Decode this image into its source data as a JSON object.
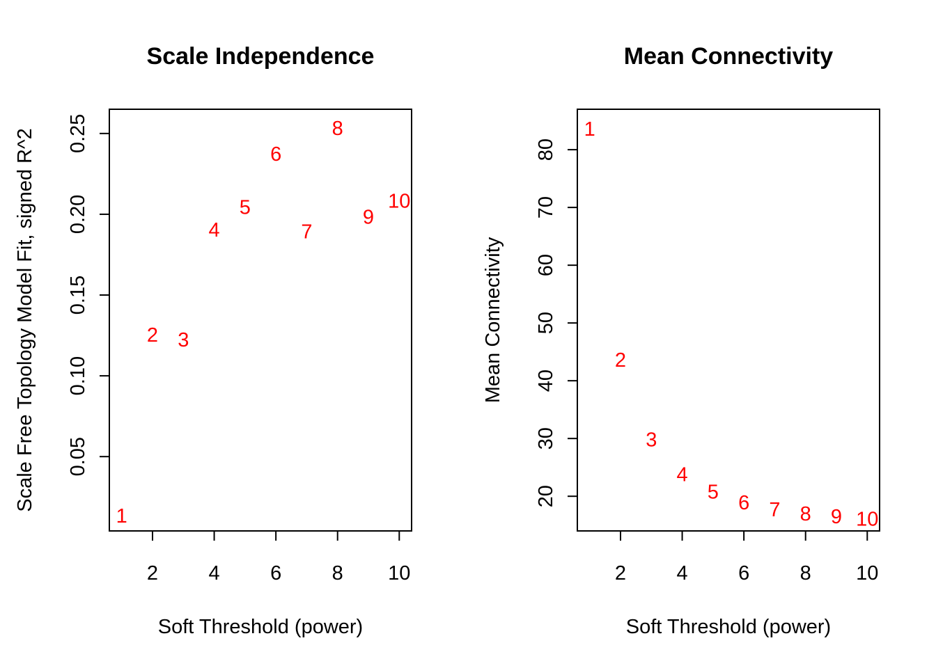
{
  "chart_data": [
    {
      "type": "scatter",
      "title": "Scale Independence",
      "xlabel": "Soft Threshold (power)",
      "ylabel": "Scale Free Topology Model Fit, signed R^2",
      "xlim": [
        0.6,
        10.4
      ],
      "ylim": [
        0.004,
        0.265
      ],
      "xticks": [
        2,
        4,
        6,
        8,
        10
      ],
      "yticks": [
        0.05,
        0.1,
        0.15,
        0.2,
        0.25
      ],
      "ytick_labels": [
        "0.05",
        "0.10",
        "0.15",
        "0.20",
        "0.25"
      ],
      "grid": false,
      "marker_color": "#ff0000",
      "points": [
        {
          "x": 1,
          "y": 0.013,
          "label": "1"
        },
        {
          "x": 2,
          "y": 0.125,
          "label": "2"
        },
        {
          "x": 3,
          "y": 0.122,
          "label": "3"
        },
        {
          "x": 4,
          "y": 0.19,
          "label": "4"
        },
        {
          "x": 5,
          "y": 0.204,
          "label": "5"
        },
        {
          "x": 6,
          "y": 0.237,
          "label": "6"
        },
        {
          "x": 7,
          "y": 0.189,
          "label": "7"
        },
        {
          "x": 8,
          "y": 0.253,
          "label": "8"
        },
        {
          "x": 9,
          "y": 0.198,
          "label": "9"
        },
        {
          "x": 10,
          "y": 0.208,
          "label": "10"
        }
      ]
    },
    {
      "type": "scatter",
      "title": "Mean Connectivity",
      "xlabel": "Soft Threshold (power)",
      "ylabel": "Mean Connectivity",
      "xlim": [
        0.6,
        10.4
      ],
      "ylim": [
        14,
        87
      ],
      "xticks": [
        2,
        4,
        6,
        8,
        10
      ],
      "yticks": [
        20,
        30,
        40,
        50,
        60,
        70,
        80
      ],
      "ytick_labels": [
        "20",
        "30",
        "40",
        "50",
        "60",
        "70",
        "80"
      ],
      "grid": false,
      "marker_color": "#ff0000",
      "points": [
        {
          "x": 1,
          "y": 83.5,
          "label": "1"
        },
        {
          "x": 2,
          "y": 43.5,
          "label": "2"
        },
        {
          "x": 3,
          "y": 29.7,
          "label": "3"
        },
        {
          "x": 4,
          "y": 23.7,
          "label": "4"
        },
        {
          "x": 5,
          "y": 20.7,
          "label": "5"
        },
        {
          "x": 6,
          "y": 18.8,
          "label": "6"
        },
        {
          "x": 7,
          "y": 17.6,
          "label": "7"
        },
        {
          "x": 8,
          "y": 16.9,
          "label": "8"
        },
        {
          "x": 9,
          "y": 16.4,
          "label": "9"
        },
        {
          "x": 10,
          "y": 16.0,
          "label": "10"
        }
      ]
    }
  ]
}
